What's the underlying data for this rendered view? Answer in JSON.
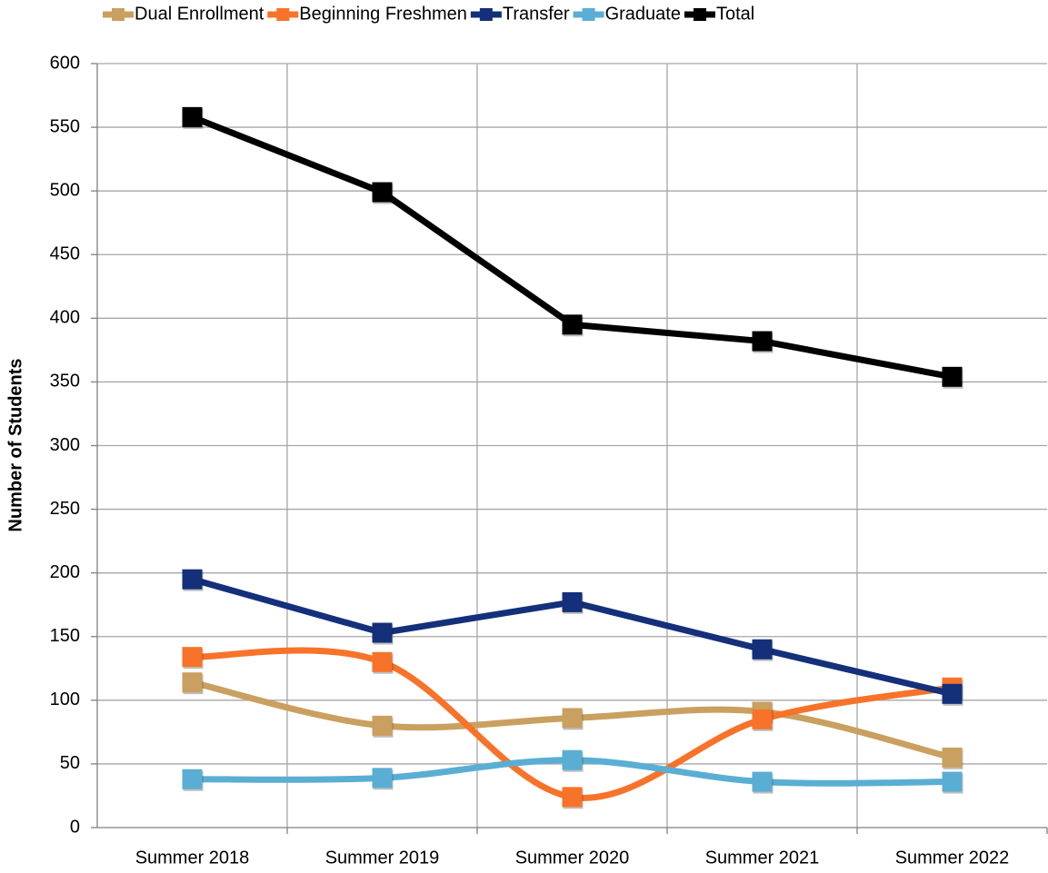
{
  "chart_data": {
    "type": "line",
    "y_label": "Number of Students",
    "categories": [
      "Summer 2018",
      "Summer 2019",
      "Summer 2020",
      "Summer 2021",
      "Summer 2022"
    ],
    "series": [
      {
        "name": "Dual Enrollment",
        "color": "#c9a060",
        "smooth": true,
        "values": [
          114,
          80,
          86,
          91,
          55
        ]
      },
      {
        "name": "Beginning Freshmen",
        "color": "#f7732a",
        "smooth": true,
        "values": [
          134,
          130,
          24,
          85,
          110
        ]
      },
      {
        "name": "Transfer",
        "color": "#14307a",
        "smooth": false,
        "values": [
          195,
          153,
          177,
          140,
          105
        ]
      },
      {
        "name": "Graduate",
        "color": "#5aaed4",
        "smooth": true,
        "values": [
          38,
          39,
          53,
          36,
          36
        ]
      },
      {
        "name": "Total",
        "color": "#000000",
        "smooth": false,
        "values": [
          558,
          499,
          395,
          382,
          354
        ]
      }
    ],
    "ylim": [
      0,
      600
    ],
    "yticks": [
      0,
      50,
      100,
      150,
      200,
      250,
      300,
      350,
      400,
      450,
      500,
      550,
      600
    ],
    "grid": true,
    "legend": "top"
  }
}
